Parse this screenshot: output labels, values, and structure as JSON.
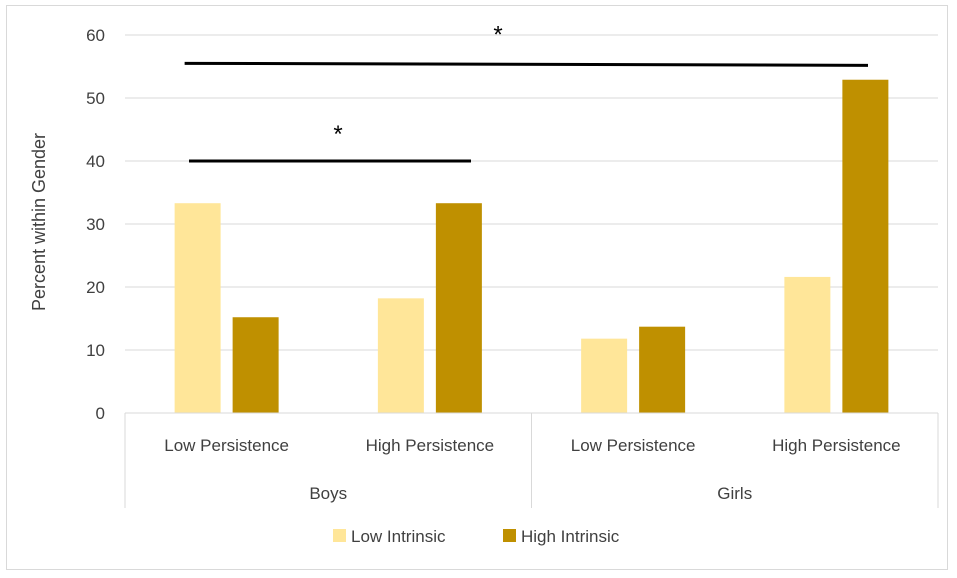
{
  "chart_data": {
    "type": "bar",
    "ylabel": "Percent within Gender",
    "ylim": [
      0,
      60
    ],
    "yticks": [
      "0",
      "10",
      "20",
      "30",
      "40",
      "50",
      "60"
    ],
    "grid": true,
    "legend_position": "bottom",
    "groups": [
      {
        "label": "Boys",
        "categories": [
          "Low Persistence",
          "High Persistence"
        ]
      },
      {
        "label": "Girls",
        "categories": [
          "Low Persistence",
          "High Persistence"
        ]
      }
    ],
    "series": [
      {
        "name": "Low Intrinsic",
        "color": "#ffe699",
        "values": [
          33.3,
          18.2,
          11.8,
          21.6
        ]
      },
      {
        "name": "High Intrinsic",
        "color": "#bf9000",
        "values": [
          15.2,
          33.3,
          13.7,
          52.9
        ]
      }
    ],
    "annotations": [
      {
        "text": "*",
        "from_category": 0,
        "to_category": 1,
        "y": 40
      },
      {
        "text": "*",
        "from_category": 0,
        "to_category": 3,
        "y": 55.5
      }
    ]
  }
}
